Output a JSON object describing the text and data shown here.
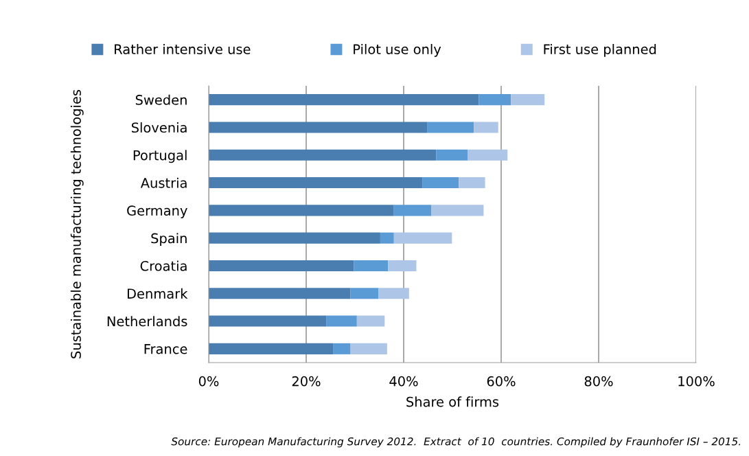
{
  "chart_data": {
    "type": "bar",
    "orientation": "horizontal",
    "stacked": true,
    "categories": [
      "Sweden",
      "Slovenia",
      "Portugal",
      "Austria",
      "Germany",
      "Spain",
      "Croatia",
      "Denmark",
      "Netherlands",
      "France"
    ],
    "series": [
      {
        "name": "Rather intensive use",
        "color": "#4a7eb0",
        "values": [
          55.4,
          44.8,
          46.7,
          43.9,
          37.9,
          35.2,
          29.8,
          29.1,
          24.1,
          25.5
        ]
      },
      {
        "name": "Pilot use only",
        "color": "#5b9bd5",
        "values": [
          6.6,
          9.6,
          6.4,
          7.4,
          7.8,
          2.8,
          7.0,
          5.7,
          6.3,
          3.6
        ]
      },
      {
        "name": "First use planned",
        "color": "#adc5e6",
        "values": [
          6.9,
          5.0,
          8.2,
          5.4,
          10.7,
          11.9,
          5.8,
          6.3,
          5.7,
          7.5
        ]
      }
    ],
    "xlim": [
      0,
      100
    ],
    "xticks": [
      {
        "value": 0,
        "label": "0%"
      },
      {
        "value": 20,
        "label": "20%"
      },
      {
        "value": 40,
        "label": "40%"
      },
      {
        "value": 60,
        "label": "60%"
      },
      {
        "value": 80,
        "label": "80%"
      },
      {
        "value": 100,
        "label": "100%"
      }
    ],
    "xlabel": "Share of firms",
    "ylabel": "Sustainable manufacturing technologies",
    "grid": "x",
    "legend": "top",
    "annotations": [
      "Source: European Manufacturing Survey 2012.  Extract  of 10  countries. Compiled by Fraunhofer ISI – 2015."
    ]
  }
}
